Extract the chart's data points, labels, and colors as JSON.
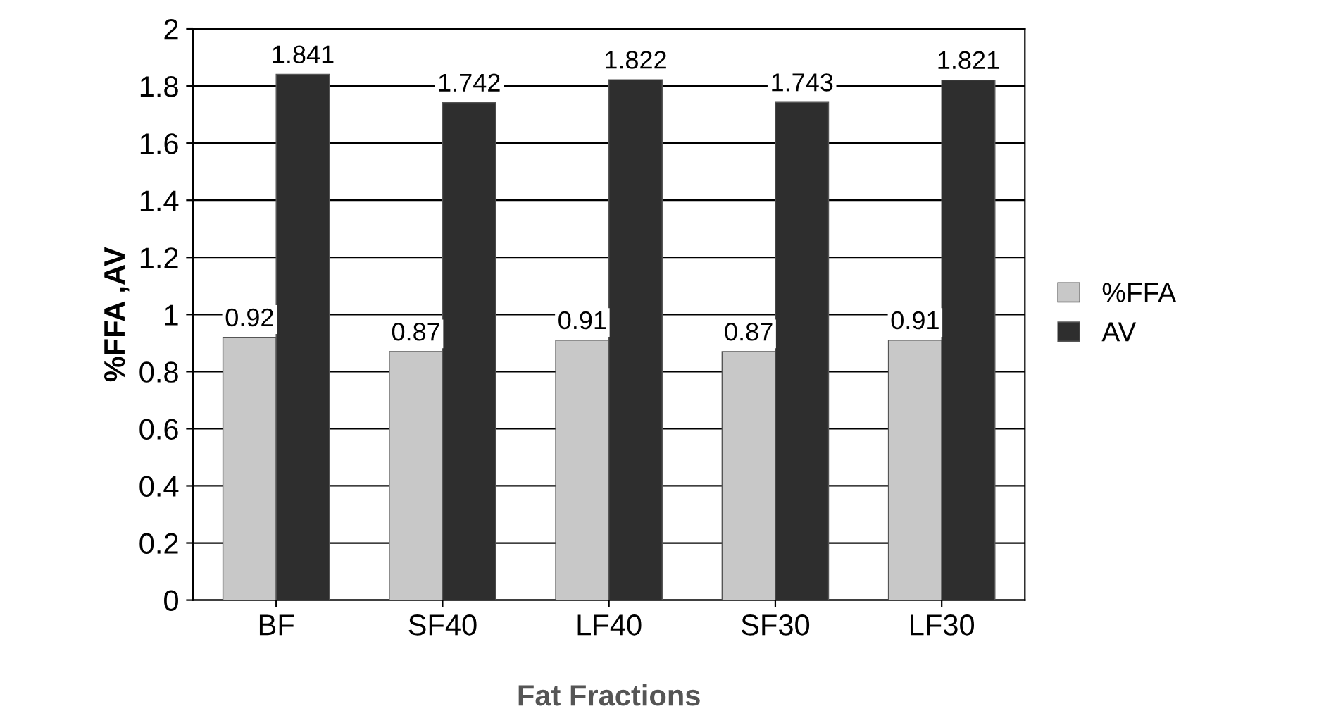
{
  "chart_data": {
    "type": "bar",
    "xlabel": "Fat Fractions",
    "ylabel": "%FFA ,AV",
    "categories": [
      "BF",
      "SF40",
      "LF40",
      "SF30",
      "LF30"
    ],
    "series": [
      {
        "name": "%FFA",
        "color": "#c8c8c8",
        "values": [
          0.92,
          0.87,
          0.91,
          0.87,
          0.91
        ]
      },
      {
        "name": "AV",
        "color": "#2e2e2e",
        "values": [
          1.841,
          1.742,
          1.822,
          1.743,
          1.821
        ]
      }
    ],
    "ylim": [
      0,
      2
    ],
    "yticks": [
      0,
      0.2,
      0.4,
      0.6,
      0.8,
      1,
      1.2,
      1.4,
      1.6,
      1.8,
      2
    ],
    "grid": "y",
    "legend": "right",
    "data_labels": true
  }
}
